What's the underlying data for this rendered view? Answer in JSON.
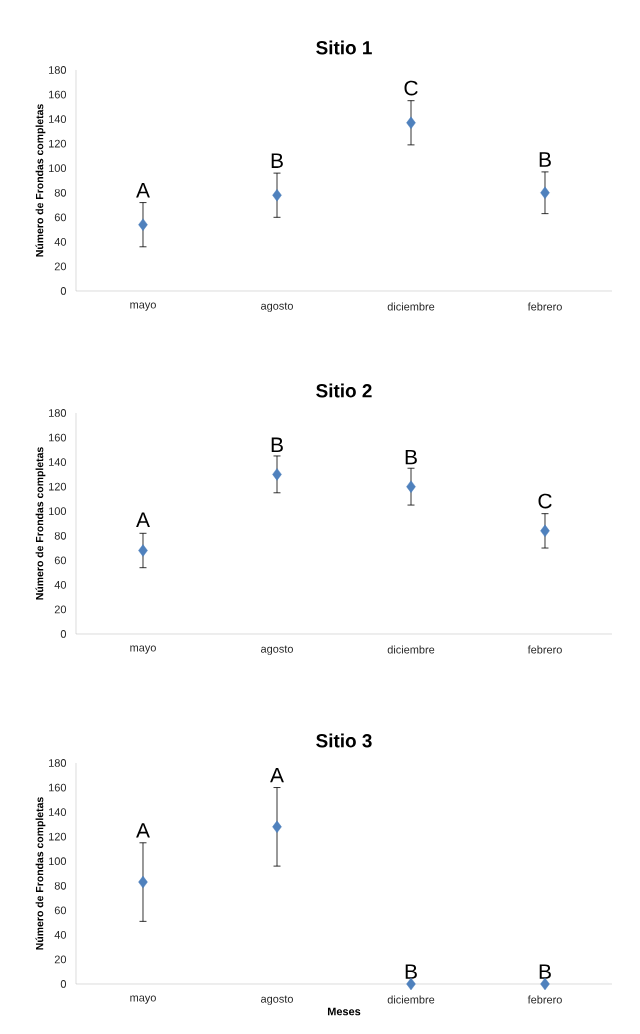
{
  "chart_data": [
    {
      "type": "scatter",
      "title": "Sitio 1",
      "ylabel": "Número de Frondas completas",
      "categories": [
        "mayo",
        "agosto",
        "diciembre",
        "febrero"
      ],
      "values": [
        54,
        78,
        137,
        80
      ],
      "errors": [
        18,
        18,
        18,
        17
      ],
      "color": "#4f81bd",
      "marker": "diamond",
      "ylim": [
        0,
        180
      ],
      "yticks": [
        0,
        20,
        40,
        60,
        80,
        100,
        120,
        140,
        160,
        180
      ],
      "grid": false,
      "annotations": [
        {
          "text": "A",
          "x": "mayo",
          "y": 72
        },
        {
          "text": "B",
          "x": "agosto",
          "y": 96
        },
        {
          "text": "C",
          "x": "diciembre",
          "y": 155
        },
        {
          "text": "B",
          "x": "febrero",
          "y": 97
        }
      ]
    },
    {
      "type": "scatter",
      "title": "Sitio 2",
      "ylabel": "Número de Frondas completas",
      "categories": [
        "mayo",
        "agosto",
        "diciembre",
        "febrero"
      ],
      "values": [
        68,
        130,
        120,
        84
      ],
      "errors": [
        14,
        15,
        15,
        14
      ],
      "color": "#4f81bd",
      "marker": "diamond",
      "ylim": [
        0,
        180
      ],
      "yticks": [
        0,
        20,
        40,
        60,
        80,
        100,
        120,
        140,
        160,
        180
      ],
      "grid": false,
      "annotations": [
        {
          "text": "A",
          "x": "mayo",
          "y": 83
        },
        {
          "text": "B",
          "x": "agosto",
          "y": 144
        },
        {
          "text": "B",
          "x": "diciembre",
          "y": 134
        },
        {
          "text": "C",
          "x": "febrero",
          "y": 98
        }
      ]
    },
    {
      "type": "scatter",
      "title": "Sitio 3",
      "xlabel": "Meses",
      "ylabel": "Número de Frondas completas",
      "categories": [
        "mayo",
        "agosto",
        "diciembre",
        "febrero"
      ],
      "values": [
        83,
        128,
        0,
        0
      ],
      "errors": [
        32,
        32,
        null,
        null
      ],
      "color": "#4f81bd",
      "marker": "diamond",
      "ylim": [
        0,
        180
      ],
      "yticks": [
        0,
        20,
        40,
        60,
        80,
        100,
        120,
        140,
        160,
        180
      ],
      "grid": false,
      "annotations": [
        {
          "text": "A",
          "x": "mayo",
          "y": 115
        },
        {
          "text": "A",
          "x": "agosto",
          "y": 160
        },
        {
          "text": "B",
          "x": "diciembre",
          "y": 0
        },
        {
          "text": "B",
          "x": "febrero",
          "y": 0
        }
      ]
    }
  ]
}
